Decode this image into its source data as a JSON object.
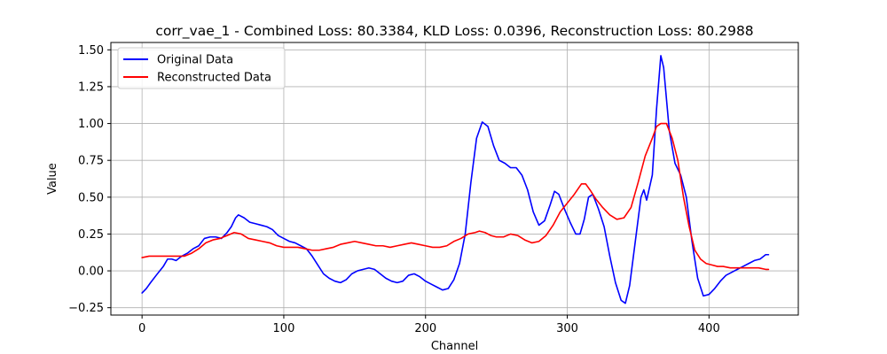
{
  "chart_data": {
    "type": "line",
    "title": "corr_vae_1 - Combined Loss: 80.3384, KLD Loss: 0.0396, Reconstruction Loss: 80.2988",
    "xlabel": "Channel",
    "ylabel": "Value",
    "xlim": [
      -22,
      463
    ],
    "ylim": [
      -0.3,
      1.55
    ],
    "xticks": [
      0,
      100,
      200,
      300,
      400
    ],
    "yticks": [
      -0.25,
      0.0,
      0.25,
      0.5,
      0.75,
      1.0,
      1.25,
      1.5
    ],
    "ytick_labels": [
      "−0.25",
      "0.00",
      "0.25",
      "0.50",
      "0.75",
      "1.00",
      "1.25",
      "1.50"
    ],
    "grid": true,
    "legend_position": "upper-left",
    "series": [
      {
        "name": "Original Data",
        "color": "#0000ff",
        "points": [
          [
            0,
            -0.15
          ],
          [
            3,
            -0.12
          ],
          [
            6,
            -0.08
          ],
          [
            10,
            -0.03
          ],
          [
            15,
            0.03
          ],
          [
            18,
            0.08
          ],
          [
            21,
            0.08
          ],
          [
            24,
            0.07
          ],
          [
            28,
            0.1
          ],
          [
            32,
            0.12
          ],
          [
            36,
            0.15
          ],
          [
            40,
            0.17
          ],
          [
            44,
            0.22
          ],
          [
            48,
            0.23
          ],
          [
            52,
            0.23
          ],
          [
            56,
            0.22
          ],
          [
            60,
            0.26
          ],
          [
            63,
            0.3
          ],
          [
            66,
            0.36
          ],
          [
            68,
            0.38
          ],
          [
            72,
            0.36
          ],
          [
            76,
            0.33
          ],
          [
            80,
            0.32
          ],
          [
            84,
            0.31
          ],
          [
            88,
            0.3
          ],
          [
            92,
            0.28
          ],
          [
            96,
            0.24
          ],
          [
            100,
            0.22
          ],
          [
            104,
            0.2
          ],
          [
            108,
            0.19
          ],
          [
            112,
            0.17
          ],
          [
            116,
            0.15
          ],
          [
            120,
            0.1
          ],
          [
            124,
            0.04
          ],
          [
            128,
            -0.02
          ],
          [
            132,
            -0.05
          ],
          [
            136,
            -0.07
          ],
          [
            140,
            -0.08
          ],
          [
            144,
            -0.06
          ],
          [
            148,
            -0.02
          ],
          [
            152,
            0.0
          ],
          [
            156,
            0.01
          ],
          [
            160,
            0.02
          ],
          [
            164,
            0.01
          ],
          [
            168,
            -0.02
          ],
          [
            172,
            -0.05
          ],
          [
            176,
            -0.07
          ],
          [
            180,
            -0.08
          ],
          [
            184,
            -0.07
          ],
          [
            188,
            -0.03
          ],
          [
            192,
            -0.02
          ],
          [
            196,
            -0.04
          ],
          [
            200,
            -0.07
          ],
          [
            204,
            -0.09
          ],
          [
            208,
            -0.11
          ],
          [
            212,
            -0.13
          ],
          [
            216,
            -0.12
          ],
          [
            220,
            -0.06
          ],
          [
            224,
            0.05
          ],
          [
            228,
            0.25
          ],
          [
            232,
            0.6
          ],
          [
            236,
            0.9
          ],
          [
            240,
            1.01
          ],
          [
            244,
            0.98
          ],
          [
            248,
            0.85
          ],
          [
            252,
            0.75
          ],
          [
            256,
            0.73
          ],
          [
            260,
            0.7
          ],
          [
            264,
            0.7
          ],
          [
            268,
            0.65
          ],
          [
            272,
            0.55
          ],
          [
            276,
            0.4
          ],
          [
            280,
            0.31
          ],
          [
            284,
            0.34
          ],
          [
            288,
            0.45
          ],
          [
            291,
            0.54
          ],
          [
            294,
            0.52
          ],
          [
            298,
            0.42
          ],
          [
            302,
            0.33
          ],
          [
            306,
            0.25
          ],
          [
            309,
            0.25
          ],
          [
            312,
            0.35
          ],
          [
            315,
            0.5
          ],
          [
            318,
            0.52
          ],
          [
            322,
            0.42
          ],
          [
            326,
            0.3
          ],
          [
            330,
            0.1
          ],
          [
            334,
            -0.08
          ],
          [
            338,
            -0.2
          ],
          [
            341,
            -0.22
          ],
          [
            344,
            -0.1
          ],
          [
            348,
            0.2
          ],
          [
            352,
            0.5
          ],
          [
            354,
            0.55
          ],
          [
            356,
            0.48
          ],
          [
            360,
            0.65
          ],
          [
            363,
            1.1
          ],
          [
            366,
            1.46
          ],
          [
            368,
            1.38
          ],
          [
            372,
            0.95
          ],
          [
            376,
            0.73
          ],
          [
            380,
            0.65
          ],
          [
            384,
            0.5
          ],
          [
            388,
            0.2
          ],
          [
            392,
            -0.05
          ],
          [
            396,
            -0.17
          ],
          [
            400,
            -0.16
          ],
          [
            404,
            -0.12
          ],
          [
            408,
            -0.07
          ],
          [
            412,
            -0.03
          ],
          [
            416,
            -0.01
          ],
          [
            420,
            0.01
          ],
          [
            424,
            0.03
          ],
          [
            428,
            0.05
          ],
          [
            432,
            0.07
          ],
          [
            436,
            0.08
          ],
          [
            440,
            0.11
          ],
          [
            442,
            0.11
          ]
        ]
      },
      {
        "name": "Reconstructed Data",
        "color": "#ff0000",
        "points": [
          [
            0,
            0.09
          ],
          [
            5,
            0.1
          ],
          [
            10,
            0.1
          ],
          [
            15,
            0.1
          ],
          [
            20,
            0.1
          ],
          [
            25,
            0.1
          ],
          [
            30,
            0.1
          ],
          [
            35,
            0.12
          ],
          [
            40,
            0.15
          ],
          [
            45,
            0.19
          ],
          [
            50,
            0.21
          ],
          [
            55,
            0.22
          ],
          [
            60,
            0.24
          ],
          [
            65,
            0.26
          ],
          [
            70,
            0.25
          ],
          [
            75,
            0.22
          ],
          [
            80,
            0.21
          ],
          [
            85,
            0.2
          ],
          [
            90,
            0.19
          ],
          [
            95,
            0.17
          ],
          [
            100,
            0.16
          ],
          [
            105,
            0.16
          ],
          [
            110,
            0.16
          ],
          [
            115,
            0.15
          ],
          [
            120,
            0.14
          ],
          [
            125,
            0.14
          ],
          [
            130,
            0.15
          ],
          [
            135,
            0.16
          ],
          [
            140,
            0.18
          ],
          [
            145,
            0.19
          ],
          [
            150,
            0.2
          ],
          [
            155,
            0.19
          ],
          [
            160,
            0.18
          ],
          [
            165,
            0.17
          ],
          [
            170,
            0.17
          ],
          [
            175,
            0.16
          ],
          [
            180,
            0.17
          ],
          [
            185,
            0.18
          ],
          [
            190,
            0.19
          ],
          [
            195,
            0.18
          ],
          [
            200,
            0.17
          ],
          [
            205,
            0.16
          ],
          [
            210,
            0.16
          ],
          [
            215,
            0.17
          ],
          [
            220,
            0.2
          ],
          [
            225,
            0.22
          ],
          [
            230,
            0.25
          ],
          [
            235,
            0.26
          ],
          [
            238,
            0.27
          ],
          [
            242,
            0.26
          ],
          [
            246,
            0.24
          ],
          [
            250,
            0.23
          ],
          [
            255,
            0.23
          ],
          [
            260,
            0.25
          ],
          [
            265,
            0.24
          ],
          [
            270,
            0.21
          ],
          [
            275,
            0.19
          ],
          [
            280,
            0.2
          ],
          [
            285,
            0.24
          ],
          [
            290,
            0.31
          ],
          [
            295,
            0.4
          ],
          [
            300,
            0.46
          ],
          [
            305,
            0.52
          ],
          [
            310,
            0.59
          ],
          [
            313,
            0.59
          ],
          [
            316,
            0.55
          ],
          [
            320,
            0.49
          ],
          [
            325,
            0.43
          ],
          [
            330,
            0.38
          ],
          [
            335,
            0.35
          ],
          [
            340,
            0.36
          ],
          [
            345,
            0.43
          ],
          [
            350,
            0.6
          ],
          [
            355,
            0.78
          ],
          [
            360,
            0.9
          ],
          [
            363,
            0.98
          ],
          [
            366,
            1.0
          ],
          [
            370,
            1.0
          ],
          [
            374,
            0.9
          ],
          [
            378,
            0.75
          ],
          [
            382,
            0.5
          ],
          [
            386,
            0.3
          ],
          [
            390,
            0.14
          ],
          [
            394,
            0.08
          ],
          [
            398,
            0.05
          ],
          [
            402,
            0.04
          ],
          [
            406,
            0.03
          ],
          [
            410,
            0.03
          ],
          [
            415,
            0.02
          ],
          [
            420,
            0.02
          ],
          [
            425,
            0.02
          ],
          [
            430,
            0.02
          ],
          [
            435,
            0.02
          ],
          [
            440,
            0.01
          ],
          [
            442,
            0.01
          ]
        ]
      }
    ]
  }
}
